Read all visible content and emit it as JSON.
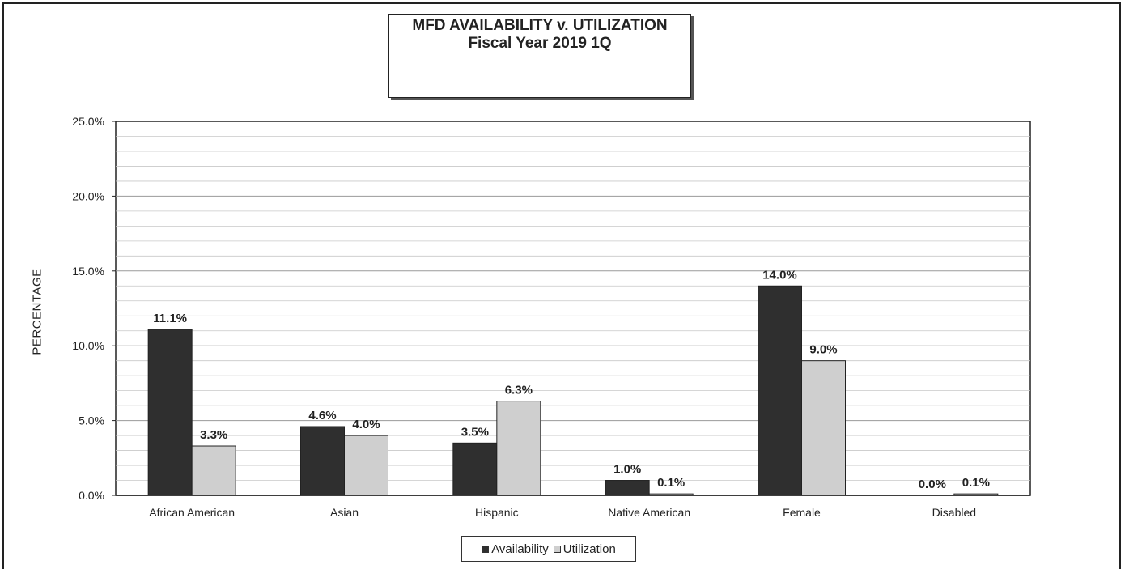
{
  "chart_data": {
    "type": "bar",
    "title": "MFD AVAILABILITY v. UTILIZATION",
    "subtitle": "Fiscal Year 2019 1Q",
    "xlabel": "",
    "ylabel": "PERCENTAGE",
    "ylim": [
      0,
      25
    ],
    "yticks": [
      "0.0%",
      "5.0%",
      "10.0%",
      "15.0%",
      "20.0%",
      "25.0%"
    ],
    "categories": [
      "African American",
      "Asian",
      "Hispanic",
      "Native American",
      "Female",
      "Disabled"
    ],
    "series": [
      {
        "name": "Availability",
        "color": "#2f2f2f",
        "values": [
          11.1,
          4.6,
          3.5,
          1.0,
          14.0,
          0.0
        ],
        "labels": [
          "11.1%",
          "4.6%",
          "3.5%",
          "1.0%",
          "14.0%",
          "0.0%"
        ]
      },
      {
        "name": "Utilization",
        "color": "#cfcfcf",
        "values": [
          3.3,
          4.0,
          6.3,
          0.1,
          9.0,
          0.1
        ],
        "labels": [
          "3.3%",
          "4.0%",
          "6.3%",
          "0.1%",
          "9.0%",
          "0.1%"
        ]
      }
    ],
    "grid": true,
    "legend": "bottom-center"
  }
}
